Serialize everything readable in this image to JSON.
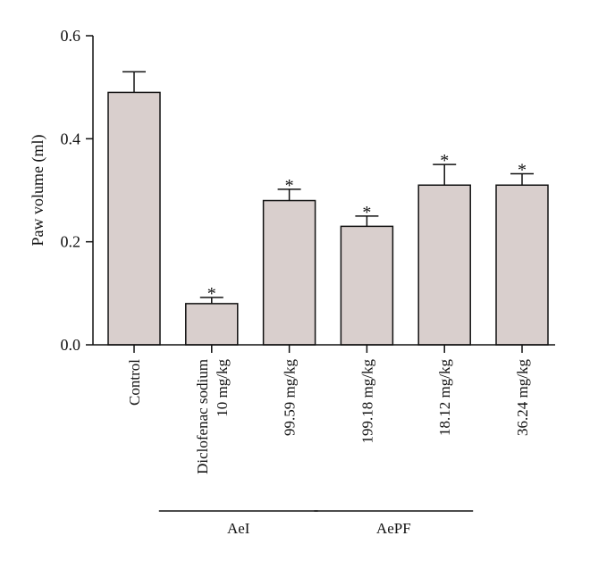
{
  "chart_data": {
    "type": "bar",
    "ylabel": "Paw volume (ml)",
    "ylim": [
      0,
      0.6
    ],
    "yticks": [
      "0.0",
      "0.2",
      "0.4",
      "0.6"
    ],
    "categories": [
      [
        "Control"
      ],
      [
        "Diclofenac sodium",
        "10 mg/kg"
      ],
      [
        "99.59 mg/kg"
      ],
      [
        "199.18 mg/kg"
      ],
      [
        "18.12 mg/kg"
      ],
      [
        "36.24 mg/kg"
      ]
    ],
    "values": [
      0.49,
      0.08,
      0.28,
      0.23,
      0.31,
      0.31
    ],
    "errors": [
      0.04,
      0.012,
      0.022,
      0.02,
      0.04,
      0.022
    ],
    "significance": [
      "",
      "*",
      "*",
      "*",
      "*",
      "*"
    ],
    "groups": [
      {
        "label": "AeI",
        "from": 1,
        "to": 2
      },
      {
        "label": "AePF",
        "from": 3,
        "to": 4
      }
    ],
    "bar_color": "#d9cfcd"
  }
}
